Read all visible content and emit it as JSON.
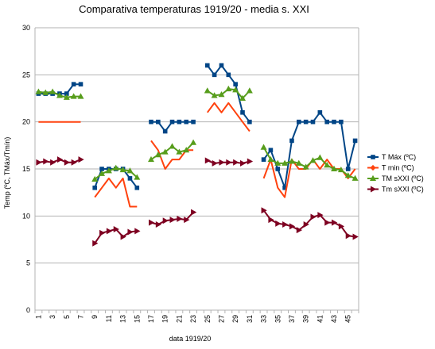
{
  "chart_data": {
    "type": "line",
    "title": "Comparativa temperaturas 1919/20 - media s. XXI",
    "xlabel": "data 1919/20",
    "ylabel": "Temp (ºC, TMáx/Tmín)",
    "xlim": [
      1,
      46
    ],
    "ylim": [
      0,
      30
    ],
    "y_ticks": [
      0,
      5,
      10,
      15,
      20,
      25,
      30
    ],
    "x_tick_labels": [
      1,
      3,
      5,
      7,
      9,
      11,
      13,
      15,
      17,
      19,
      21,
      23,
      25,
      27,
      29,
      31,
      33,
      35,
      37,
      39,
      41,
      43,
      45
    ],
    "grid": "horizontal",
    "legend": "right",
    "series": [
      {
        "name": "T Máx (ºC)",
        "color": "#004586",
        "marker": "square",
        "x": [
          1,
          2,
          3,
          4,
          5,
          6,
          7,
          null,
          9,
          10,
          11,
          12,
          13,
          14,
          15,
          null,
          17,
          18,
          19,
          20,
          21,
          22,
          23,
          null,
          25,
          26,
          27,
          28,
          29,
          30,
          31,
          null,
          33,
          34,
          35,
          36,
          37,
          38,
          39,
          40,
          41,
          42,
          43,
          44,
          45,
          46
        ],
        "values": [
          23,
          23,
          23,
          23,
          23,
          24,
          24,
          null,
          13,
          15,
          15,
          15,
          15,
          14,
          13,
          null,
          20,
          20,
          19,
          20,
          20,
          20,
          20,
          null,
          26,
          25,
          26,
          25,
          24,
          21,
          20,
          null,
          16,
          17,
          15,
          13,
          18,
          20,
          20,
          20,
          21,
          20,
          20,
          20,
          15,
          18
        ]
      },
      {
        "name": "T min (ºC)",
        "color": "#ff420e",
        "marker": "diamond",
        "x": [
          1,
          2,
          3,
          4,
          5,
          6,
          7,
          null,
          9,
          10,
          11,
          12,
          13,
          14,
          15,
          null,
          17,
          18,
          19,
          20,
          21,
          22,
          23,
          null,
          25,
          26,
          27,
          28,
          29,
          30,
          31,
          null,
          33,
          34,
          35,
          36,
          37,
          38,
          39,
          40,
          41,
          42,
          43,
          44,
          45,
          46
        ],
        "values": [
          20,
          20,
          20,
          20,
          20,
          20,
          20,
          null,
          12,
          13,
          14,
          13,
          14,
          11,
          11,
          null,
          18,
          17,
          15,
          16,
          16,
          17,
          17,
          null,
          21,
          22,
          21,
          22,
          21,
          20,
          19,
          null,
          14,
          16,
          13,
          12,
          16,
          15,
          15,
          16,
          15,
          16,
          15,
          15,
          14,
          15
        ]
      },
      {
        "name": "TM sXXI (ºC)",
        "color": "#579d1c",
        "marker": "triangle",
        "x": [
          1,
          2,
          3,
          4,
          5,
          6,
          7,
          null,
          9,
          10,
          11,
          12,
          13,
          14,
          15,
          null,
          17,
          18,
          19,
          20,
          21,
          22,
          23,
          null,
          25,
          26,
          27,
          28,
          29,
          30,
          31,
          null,
          33,
          34,
          35,
          36,
          37,
          38,
          39,
          40,
          41,
          42,
          43,
          44,
          45,
          46
        ],
        "values": [
          23.2,
          23.1,
          23.2,
          22.8,
          22.6,
          22.7,
          22.7,
          null,
          13.9,
          14.5,
          14.8,
          15.1,
          14.9,
          14.8,
          14.1,
          null,
          16.0,
          16.5,
          16.8,
          17.4,
          16.8,
          17.0,
          17.8,
          null,
          23.3,
          22.8,
          22.9,
          23.5,
          23.4,
          22.5,
          23.3,
          null,
          17.3,
          16.0,
          15.6,
          15.6,
          15.8,
          15.6,
          15.2,
          15.9,
          16.2,
          15.4,
          15.0,
          14.9,
          14.3,
          14.0
        ]
      },
      {
        "name": "Tm sXXI (ºC)",
        "color": "#7e0021",
        "marker": "triangle-right",
        "x": [
          1,
          2,
          3,
          4,
          5,
          6,
          7,
          null,
          9,
          10,
          11,
          12,
          13,
          14,
          15,
          null,
          17,
          18,
          19,
          20,
          21,
          22,
          23,
          null,
          25,
          26,
          27,
          28,
          29,
          30,
          31,
          null,
          33,
          34,
          35,
          36,
          37,
          38,
          39,
          40,
          41,
          42,
          43,
          44,
          45,
          46
        ],
        "values": [
          15.7,
          15.8,
          15.7,
          16.0,
          15.7,
          15.7,
          16.0,
          null,
          7.1,
          8.2,
          8.4,
          8.6,
          7.8,
          8.3,
          8.4,
          null,
          9.3,
          9.1,
          9.5,
          9.6,
          9.7,
          9.6,
          10.4,
          null,
          15.9,
          15.6,
          15.7,
          15.7,
          15.7,
          15.6,
          15.8,
          null,
          10.6,
          9.6,
          9.2,
          9.1,
          8.9,
          8.5,
          9.1,
          9.9,
          10.1,
          9.3,
          9.3,
          8.9,
          7.9,
          7.8
        ]
      }
    ]
  }
}
